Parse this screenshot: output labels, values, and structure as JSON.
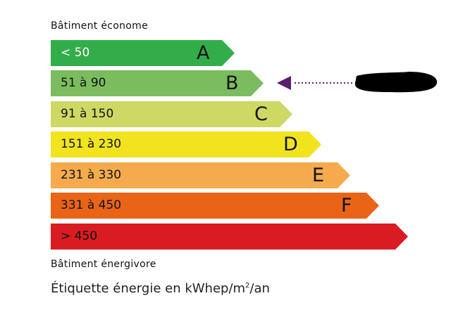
{
  "header": {
    "top_label": "Bâtiment économe",
    "bottom_label": "Bâtiment énergivore"
  },
  "classes": [
    {
      "range": "< 50",
      "letter": "A",
      "color": "#33ad4a",
      "text_color": "#ffffff"
    },
    {
      "range": "51 à 90",
      "letter": "B",
      "color": "#7bbd5e",
      "text_color": "#111111"
    },
    {
      "range": "91 à 150",
      "letter": "C",
      "color": "#cdd964",
      "text_color": "#111111"
    },
    {
      "range": "151 à 230",
      "letter": "D",
      "color": "#f1e41f",
      "text_color": "#111111"
    },
    {
      "range": "231 à 330",
      "letter": "E",
      "color": "#f5ab4d",
      "text_color": "#111111"
    },
    {
      "range": "331 à 450",
      "letter": "F",
      "color": "#ea6418",
      "text_color": "#111111"
    },
    {
      "range": "> 450",
      "letter": "",
      "color": "#d91c21",
      "text_color": "#111111"
    }
  ],
  "indicator": {
    "class": "B",
    "arrow_color": "#5a1f6e"
  },
  "caption": {
    "text": "Étiquette énergie en kWhep/m",
    "sup": "2",
    "suffix": "/an"
  }
}
